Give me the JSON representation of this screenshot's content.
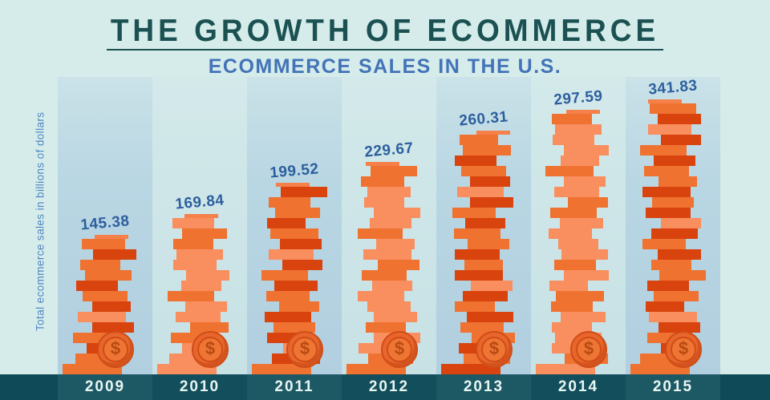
{
  "header": {
    "title": "THE GROWTH OF ECOMMERCE",
    "subtitle": "ECOMMERCE SALES IN THE U.S."
  },
  "chart_data": {
    "type": "bar",
    "title": "THE GROWTH OF ECOMMERCE",
    "subtitle": "ECOMMERCE SALES IN THE U.S.",
    "ylabel": "Total ecommerce sales in billions of dollars",
    "unit": "billions of US dollars",
    "categories": [
      "2009",
      "2010",
      "2011",
      "2012",
      "2013",
      "2014",
      "2015"
    ],
    "values": [
      145.38,
      169.84,
      199.52,
      229.67,
      260.31,
      297.59,
      341.83
    ],
    "value_labels": [
      "145.38",
      "169.84",
      "199.52",
      "229.67",
      "260.31",
      "297.59",
      "341.83"
    ],
    "ylim": [
      0,
      360
    ],
    "grid": false,
    "legend": "none",
    "bar_style": "stack-of-coins with dollar-coin badge at base",
    "layout_hints": {
      "coin_counts": [
        13,
        15,
        18,
        20,
        23,
        25,
        26
      ]
    }
  },
  "icons": {
    "dollar_sign": "$"
  },
  "colors": {
    "background": "#d5ecea",
    "band_dark": "#b9d6e3",
    "band_light": "#c7e1e5",
    "footer": "#0f4a58",
    "footer_cell_light": "#1d5865",
    "title": "#1b5152",
    "subtitle": "#4373b8",
    "value_label": "#2d5f9e",
    "axis_label": "#5086c2",
    "year_label": "#e8f6f1",
    "coin_light": "#f98e5e",
    "coin_medium": "#ef7231",
    "coin_dark": "#d8430e",
    "coin_circle": "#e8662c",
    "dollar_sign": "#b84a12"
  }
}
